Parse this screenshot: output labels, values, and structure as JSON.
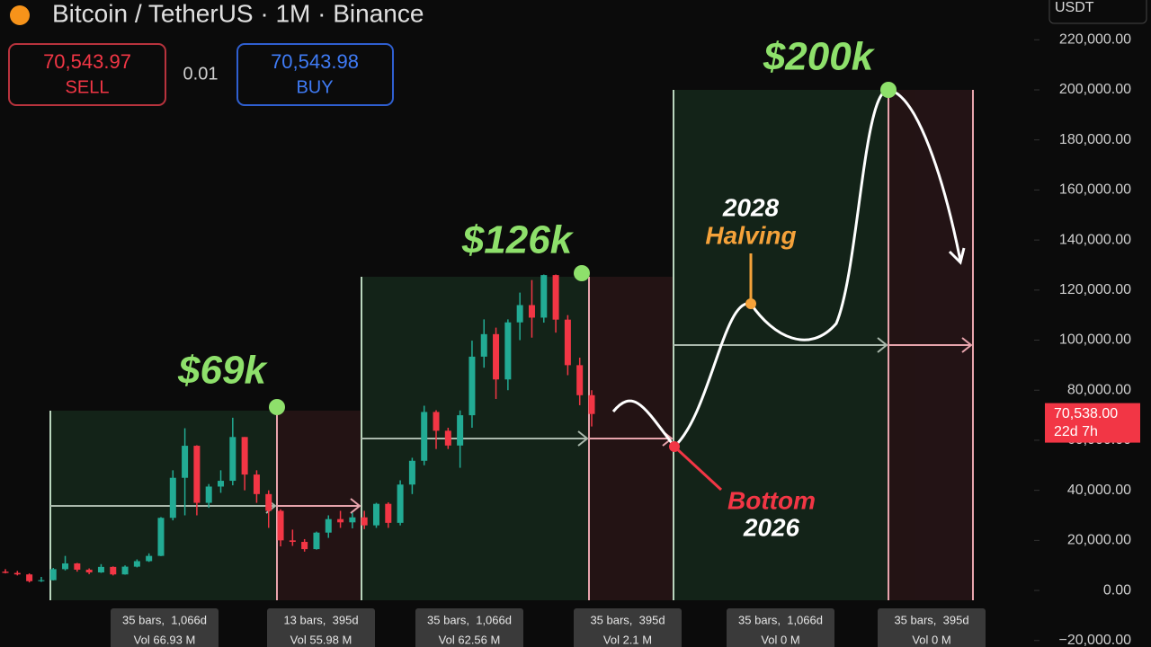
{
  "header": {
    "title": "Bitcoin / TetherUS · 1M · Binance",
    "sell_price": "70,543.97",
    "sell_label": "SELL",
    "spread": "0.01",
    "buy_price": "70,543.98",
    "buy_label": "BUY",
    "currency": "USDT"
  },
  "chart_data": {
    "type": "candlestick",
    "open": [
      7500,
      7000,
      6400,
      3700,
      4100,
      8500,
      10800,
      8300,
      7200,
      9400,
      6400,
      9500,
      11700,
      13800,
      29000,
      45000,
      57800,
      35000,
      41500,
      43800,
      61300,
      46300,
      38500,
      31800,
      20000,
      19400,
      16500,
      23100,
      28500,
      27200,
      29200,
      26000,
      34600,
      27000,
      42300,
      51800,
      71300,
      63800,
      57900,
      70000,
      93400,
      102400,
      84300,
      107100,
      114000,
      109000,
      126000,
      108200,
      90000,
      78000
    ],
    "high": [
      8500,
      7800,
      6800,
      5400,
      9000,
      13800,
      11000,
      8800,
      10500,
      9600,
      10000,
      12400,
      14800,
      29300,
      48000,
      64800,
      58000,
      42500,
      48000,
      69000,
      61300,
      48000,
      40000,
      32400,
      24300,
      20500,
      23500,
      30000,
      31800,
      31000,
      31800,
      35000,
      35200,
      44000,
      53000,
      73800,
      72000,
      65000,
      71900,
      99800,
      108300,
      105000,
      108300,
      119000,
      124000,
      126200,
      126200,
      110000,
      93000,
      80000
    ],
    "low": [
      6800,
      6000,
      3200,
      3400,
      4000,
      8000,
      7500,
      6500,
      7000,
      6000,
      6300,
      9200,
      11400,
      13700,
      28000,
      30000,
      30000,
      33000,
      39000,
      42000,
      40000,
      35000,
      25000,
      17600,
      17800,
      15500,
      16300,
      21000,
      25000,
      24800,
      24500,
      25000,
      25000,
      26000,
      38500,
      50000,
      56500,
      56500,
      49000,
      65000,
      89000,
      76500,
      80000,
      100000,
      101000,
      107000,
      103000,
      86000,
      74000,
      65500
    ],
    "close": [
      7000,
      6400,
      3700,
      4100,
      8500,
      10800,
      8300,
      7200,
      9400,
      6400,
      9500,
      11700,
      13800,
      29000,
      45000,
      57800,
      35000,
      41500,
      43800,
      61300,
      46300,
      38500,
      31800,
      20000,
      19400,
      16500,
      23100,
      28500,
      27200,
      29200,
      26000,
      34600,
      27000,
      42300,
      51800,
      71300,
      63800,
      57900,
      70000,
      93400,
      102400,
      84300,
      107100,
      114000,
      109000,
      126000,
      108200,
      90000,
      78000,
      70500
    ],
    "up_color": "#22ab94",
    "down_color": "#f23645",
    "ylim": [
      -22600,
      235900
    ],
    "yticks": [
      {
        "value": -20000,
        "label": "−20,000.00"
      },
      {
        "value": 0,
        "label": "0.00"
      },
      {
        "value": 20000,
        "label": "20,000.00"
      },
      {
        "value": 40000,
        "label": "40,000.00"
      },
      {
        "value": 60000,
        "label": "60,000.00"
      },
      {
        "value": 80000,
        "label": "80,000.00"
      },
      {
        "value": 100000,
        "label": "100,000.00"
      },
      {
        "value": 120000,
        "label": "120,000.00"
      },
      {
        "value": 140000,
        "label": "140,000.00"
      },
      {
        "value": 160000,
        "label": "160,000.00"
      },
      {
        "value": 180000,
        "label": "180,000.00"
      },
      {
        "value": 200000,
        "label": "200,000.00"
      },
      {
        "value": 220000,
        "label": "220,000.00"
      }
    ],
    "last_price": {
      "value": 70538,
      "label": "70,538.00",
      "countdown": "22d 7h"
    },
    "annotations": {
      "peak1": "$69k",
      "peak2": "$126k",
      "peak3": "$200k",
      "bottom_word": "Bottom",
      "bottom_year": "2026",
      "halving_year": "2028",
      "halving_word": "Halving"
    },
    "ranges": [
      [
        "35 bars,  1,066d",
        "Vol 66.93 M"
      ],
      [
        "13 bars,  395d",
        "Vol 55.98 M"
      ],
      [
        "35 bars,  1,066d",
        "Vol 62.56 M"
      ],
      [
        "35 bars,  395d",
        "Vol 2.1 M"
      ],
      [
        "35 bars,  1,066d",
        "Vol 0 M"
      ],
      [
        "35 bars,  395d",
        "Vol 0 M"
      ]
    ]
  }
}
